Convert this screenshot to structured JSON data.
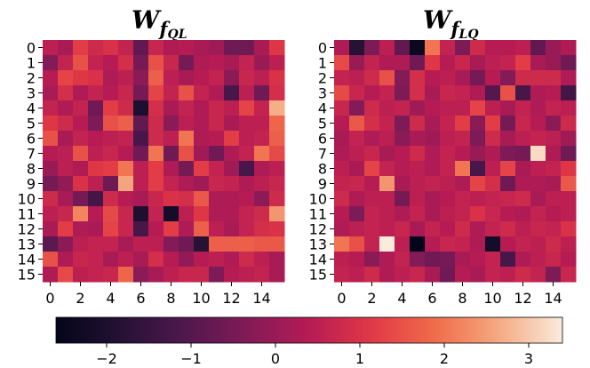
{
  "chart_data": {
    "type": "heatmap",
    "colormap": "rocket",
    "vmin": -2.6,
    "vmax": 3.4,
    "panels": [
      {
        "title_main": "W",
        "title_sub": "f",
        "title_subsub": "QL",
        "x_ticks": [
          "0",
          "2",
          "4",
          "6",
          "8",
          "10",
          "12",
          "14"
        ],
        "y_ticks": [
          "0",
          "1",
          "2",
          "3",
          "4",
          "5",
          "6",
          "7",
          "8",
          "9",
          "10",
          "11",
          "12",
          "13",
          "14",
          "15"
        ],
        "values": [
          [
            0.5,
            0.2,
            1.2,
            0.8,
            1.0,
            0.6,
            -0.8,
            0.7,
            0.3,
            0.4,
            0.2,
            0.1,
            -0.6,
            -0.6,
            0.2,
            1.1
          ],
          [
            -0.3,
            0.6,
            1.5,
            0.6,
            0.4,
            0.9,
            -0.5,
            1.5,
            0.7,
            -0.5,
            0.3,
            0.4,
            0.2,
            0.6,
            0.0,
            0.5
          ],
          [
            0.4,
            1.3,
            1.1,
            1.0,
            0.3,
            0.5,
            -0.2,
            1.7,
            0.5,
            0.2,
            0.4,
            0.6,
            -0.2,
            0.7,
            0.5,
            1.0
          ],
          [
            0.2,
            0.9,
            0.3,
            0.6,
            0.4,
            0.7,
            -0.5,
            1.3,
            0.6,
            1.5,
            0.6,
            0.3,
            -1.2,
            0.5,
            -0.6,
            0.9
          ],
          [
            0.6,
            0.3,
            0.6,
            -0.6,
            1.2,
            0.8,
            -2.0,
            0.9,
            0.2,
            0.6,
            0.3,
            0.7,
            0.5,
            1.3,
            0.6,
            2.7
          ],
          [
            1.1,
            0.8,
            0.4,
            -0.4,
            1.5,
            1.7,
            -0.8,
            0.8,
            -0.2,
            0.5,
            0.3,
            0.7,
            0.2,
            0.5,
            0.5,
            1.8
          ],
          [
            1.5,
            0.2,
            0.6,
            0.4,
            0.5,
            0.6,
            -1.2,
            0.8,
            0.5,
            2.0,
            0.3,
            0.4,
            1.2,
            0.5,
            0.6,
            1.7
          ],
          [
            0.4,
            0.5,
            1.5,
            0.5,
            0.7,
            0.4,
            -0.6,
            2.0,
            -0.6,
            1.5,
            0.1,
            -0.6,
            0.3,
            0.6,
            2.0,
            1.4
          ],
          [
            0.0,
            0.5,
            0.3,
            1.1,
            1.2,
            2.0,
            0.5,
            1.2,
            0.3,
            -0.5,
            1.2,
            0.6,
            0.1,
            -1.2,
            0.3,
            0.5
          ],
          [
            -0.5,
            -0.1,
            1.0,
            0.5,
            -0.6,
            2.6,
            0.5,
            1.2,
            0.6,
            0.3,
            0.1,
            0.7,
            0.6,
            0.3,
            0.5,
            0.7
          ],
          [
            0.8,
            0.2,
            -0.5,
            -1.3,
            0.8,
            0.4,
            0.2,
            0.7,
            1.0,
            0.9,
            1.6,
            0.3,
            0.3,
            0.4,
            -0.2,
            0.8
          ],
          [
            0.5,
            0.7,
            2.2,
            0.4,
            1.4,
            0.7,
            -2.0,
            0.6,
            -2.2,
            0.5,
            1.1,
            0.3,
            0.3,
            0.6,
            0.8,
            2.4
          ],
          [
            0.2,
            1.2,
            0.3,
            0.2,
            1.3,
            0.7,
            -1.2,
            0.4,
            1.2,
            0.3,
            1.7,
            0.5,
            0.2,
            0.6,
            0.9,
            1.0
          ],
          [
            -0.9,
            -0.2,
            0.5,
            0.6,
            0.6,
            0.2,
            0.5,
            0.5,
            -0.3,
            -0.6,
            -1.8,
            1.7,
            1.7,
            1.7,
            1.6,
            1.6
          ],
          [
            1.5,
            0.3,
            0.7,
            0.6,
            0.2,
            0.5,
            0.2,
            0.9,
            0.4,
            -0.1,
            0.4,
            0.5,
            0.3,
            0.8,
            0.5,
            0.2
          ],
          [
            0.3,
            1.4,
            0.5,
            0.6,
            0.7,
            1.8,
            -0.2,
            0.2,
            0.5,
            0.7,
            0.7,
            -0.4,
            0.4,
            0.5,
            0.6,
            0.2
          ]
        ]
      },
      {
        "title_main": "W",
        "title_sub": "f",
        "title_subsub": "LQ",
        "x_ticks": [
          "0",
          "2",
          "4",
          "6",
          "8",
          "10",
          "12",
          "14"
        ],
        "y_ticks": [
          "0",
          "1",
          "2",
          "3",
          "4",
          "5",
          "6",
          "7",
          "8",
          "9",
          "10",
          "11",
          "12",
          "13",
          "14",
          "15"
        ],
        "values": [
          [
            0.3,
            -1.8,
            -0.4,
            0.5,
            -0.8,
            -2.4,
            2.0,
            0.6,
            -0.4,
            0.8,
            0.4,
            0.4,
            0.5,
            -0.8,
            0.0,
            0.3
          ],
          [
            1.4,
            0.0,
            0.6,
            0.3,
            0.3,
            -0.6,
            1.1,
            0.4,
            0.7,
            0.2,
            0.5,
            0.6,
            1.2,
            0.2,
            0.0,
            -0.6
          ],
          [
            0.6,
            0.5,
            0.8,
            1.5,
            -0.3,
            0.9,
            0.4,
            0.5,
            0.2,
            -0.5,
            0.4,
            -0.3,
            0.8,
            0.8,
            0.8,
            0.3
          ],
          [
            1.4,
            0.7,
            0.4,
            0.6,
            -0.4,
            0.9,
            0.2,
            0.7,
            0.6,
            0.3,
            -1.0,
            1.5,
            -1.2,
            0.3,
            0.4,
            -1.3
          ],
          [
            0.7,
            -0.3,
            0.8,
            0.5,
            0.6,
            0.1,
            0.4,
            0.5,
            0.5,
            1.3,
            0.5,
            0.2,
            0.6,
            0.3,
            0.6,
            0.5
          ],
          [
            0.4,
            1.6,
            0.9,
            0.6,
            -0.4,
            0.8,
            0.2,
            0.6,
            1.2,
            -0.2,
            1.2,
            -0.5,
            0.7,
            0.4,
            -0.2,
            0.8
          ],
          [
            0.2,
            0.6,
            0.3,
            0.5,
            -0.2,
            0.2,
            0.1,
            0.5,
            0.6,
            -0.4,
            0.8,
            0.2,
            0.5,
            0.6,
            0.5,
            0.1
          ],
          [
            0.3,
            0.5,
            0.7,
            0.2,
            0.4,
            0.8,
            0.3,
            0.6,
            0.4,
            0.0,
            0.3,
            -0.4,
            -0.5,
            3.2,
            0.3,
            -0.6
          ],
          [
            0.5,
            0.2,
            1.3,
            0.6,
            0.4,
            0.5,
            0.3,
            0.6,
            2.0,
            -1.2,
            0.5,
            1.3,
            0.2,
            0.5,
            0.6,
            1.1
          ],
          [
            0.6,
            0.7,
            0.4,
            2.4,
            0.2,
            0.5,
            0.6,
            0.5,
            0.3,
            1.3,
            0.9,
            -0.6,
            0.3,
            0.3,
            0.2,
            1.6
          ],
          [
            0.8,
            0.3,
            0.5,
            0.5,
            -0.5,
            0.5,
            0.2,
            0.4,
            0.6,
            0.5,
            0.6,
            0.7,
            0.8,
            0.2,
            0.5,
            0.5
          ],
          [
            0.4,
            -0.4,
            0.6,
            0.5,
            0.3,
            0.6,
            0.2,
            0.5,
            0.6,
            1.0,
            0.7,
            0.4,
            0.3,
            0.6,
            0.4,
            0.5
          ],
          [
            0.3,
            0.5,
            0.6,
            0.5,
            0.7,
            0.2,
            0.6,
            0.4,
            0.8,
            0.3,
            0.6,
            0.8,
            0.5,
            0.7,
            0.6,
            1.0
          ],
          [
            2.0,
            1.5,
            0.6,
            3.4,
            0.5,
            -2.6,
            0.4,
            0.7,
            0.6,
            0.3,
            -2.2,
            0.4,
            0.6,
            0.5,
            0.8,
            0.5
          ],
          [
            0.5,
            0.4,
            -0.2,
            0.3,
            0.6,
            -0.3,
            -0.6,
            -0.5,
            0.2,
            0.4,
            0.6,
            -1.2,
            0.3,
            0.5,
            0.7,
            0.4
          ],
          [
            0.6,
            0.5,
            0.8,
            0.3,
            0.5,
            0.7,
            0.2,
            -0.6,
            0.4,
            0.2,
            0.6,
            0.5,
            0.8,
            0.6,
            -0.4,
            0.7
          ]
        ]
      }
    ],
    "colorbar": {
      "ticks": [
        -2,
        -1,
        0,
        1,
        2,
        3
      ],
      "tick_labels": [
        "−2",
        "−1",
        "0",
        "1",
        "2",
        "3"
      ]
    }
  }
}
